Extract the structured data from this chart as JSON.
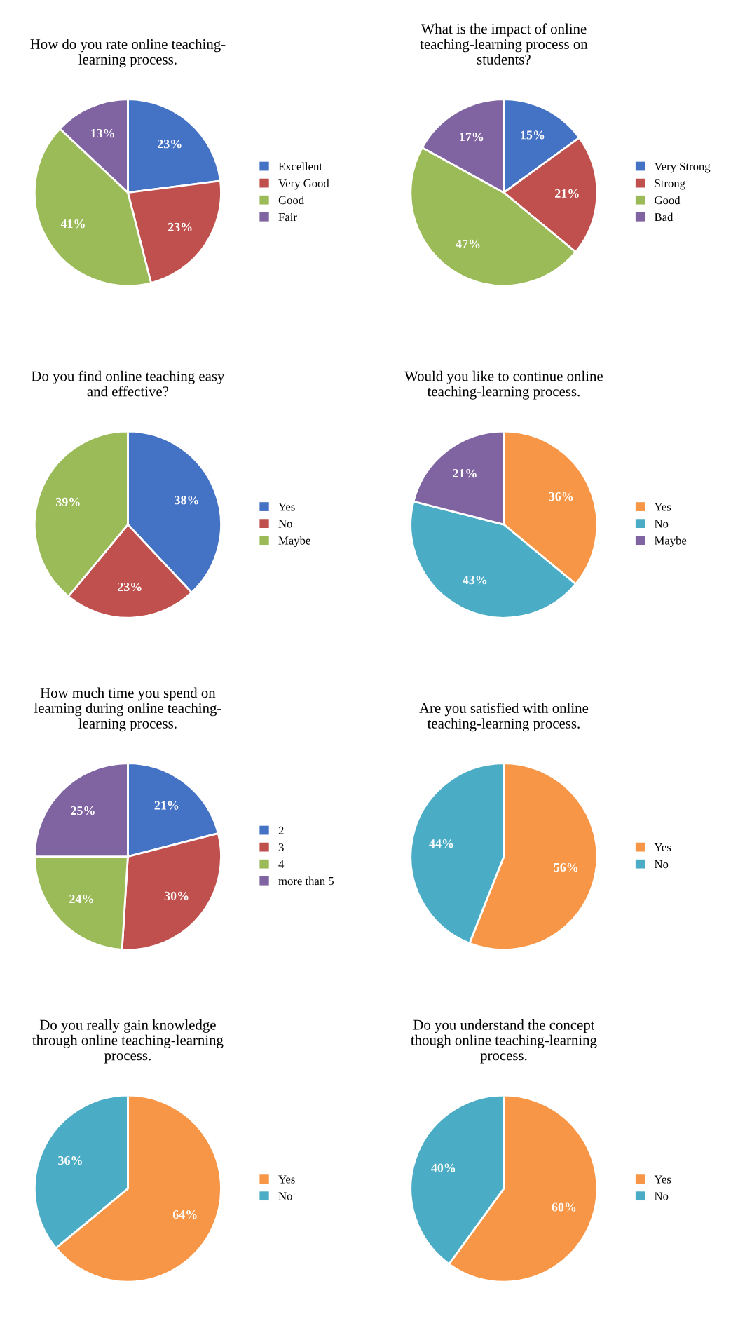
{
  "chart_data": [
    {
      "type": "pie",
      "title": "How do you rate online teaching-\nlearning process.",
      "categories": [
        "Excellent",
        "Very Good",
        "Good",
        "Fair"
      ],
      "values": [
        23,
        23,
        41,
        13
      ],
      "value_labels": [
        "23%",
        "23%",
        "41%",
        "13%"
      ],
      "colors": [
        "#4472c4",
        "#c0504d",
        "#9bbb59",
        "#8064a2"
      ],
      "legend": "right"
    },
    {
      "type": "pie",
      "title": "What is the impact of online\nteaching-learning process on\nstudents?",
      "categories": [
        "Very Strong",
        "Strong",
        "Good",
        "Bad"
      ],
      "values": [
        15,
        21,
        47,
        17
      ],
      "value_labels": [
        "15%",
        "21%",
        "47%",
        "17%"
      ],
      "colors": [
        "#4472c4",
        "#c0504d",
        "#9bbb59",
        "#8064a2"
      ],
      "legend": "right"
    },
    {
      "type": "pie",
      "title": "Do you find online teaching easy\nand effective?",
      "categories": [
        "Yes",
        "No",
        "Maybe"
      ],
      "values": [
        38,
        23,
        39
      ],
      "value_labels": [
        "38%",
        "23%",
        "39%"
      ],
      "colors": [
        "#4472c4",
        "#c0504d",
        "#9bbb59"
      ],
      "legend": "right"
    },
    {
      "type": "pie",
      "title": "Would you like to continue online\nteaching-learning process.",
      "categories": [
        "Yes",
        "No",
        "Maybe"
      ],
      "values": [
        36,
        43,
        21
      ],
      "value_labels": [
        "36%",
        "43%",
        "21%"
      ],
      "colors": [
        "#f79646",
        "#4bacc6",
        "#8064a2"
      ],
      "legend": "right"
    },
    {
      "type": "pie",
      "title": "How much time you spend on\nlearning during online teaching-\nlearning process.",
      "categories": [
        "2",
        "3",
        "4",
        "more than 5"
      ],
      "values": [
        21,
        30,
        24,
        25
      ],
      "value_labels": [
        "21%",
        "30%",
        "24%",
        "25%"
      ],
      "colors": [
        "#4472c4",
        "#c0504d",
        "#9bbb59",
        "#8064a2"
      ],
      "legend": "right"
    },
    {
      "type": "pie",
      "title": "Are you satisfied with online\nteaching-learning process.",
      "categories": [
        "Yes",
        "No"
      ],
      "values": [
        56,
        44
      ],
      "value_labels": [
        "56%",
        "44%"
      ],
      "colors": [
        "#f79646",
        "#4bacc6"
      ],
      "legend": "right"
    },
    {
      "type": "pie",
      "title": "Do you really gain knowledge\nthrough online teaching-learning\nprocess.",
      "categories": [
        "Yes",
        "No"
      ],
      "values": [
        64,
        36
      ],
      "value_labels": [
        "64%",
        "36%"
      ],
      "colors": [
        "#f79646",
        "#4bacc6"
      ],
      "legend": "right"
    },
    {
      "type": "pie",
      "title": "Do you understand the concept\nthough online teaching-learning\nprocess.",
      "categories": [
        "Yes",
        "No"
      ],
      "values": [
        60,
        40
      ],
      "value_labels": [
        "60%",
        "40%"
      ],
      "colors": [
        "#f79646",
        "#4bacc6"
      ],
      "legend": "right"
    }
  ]
}
